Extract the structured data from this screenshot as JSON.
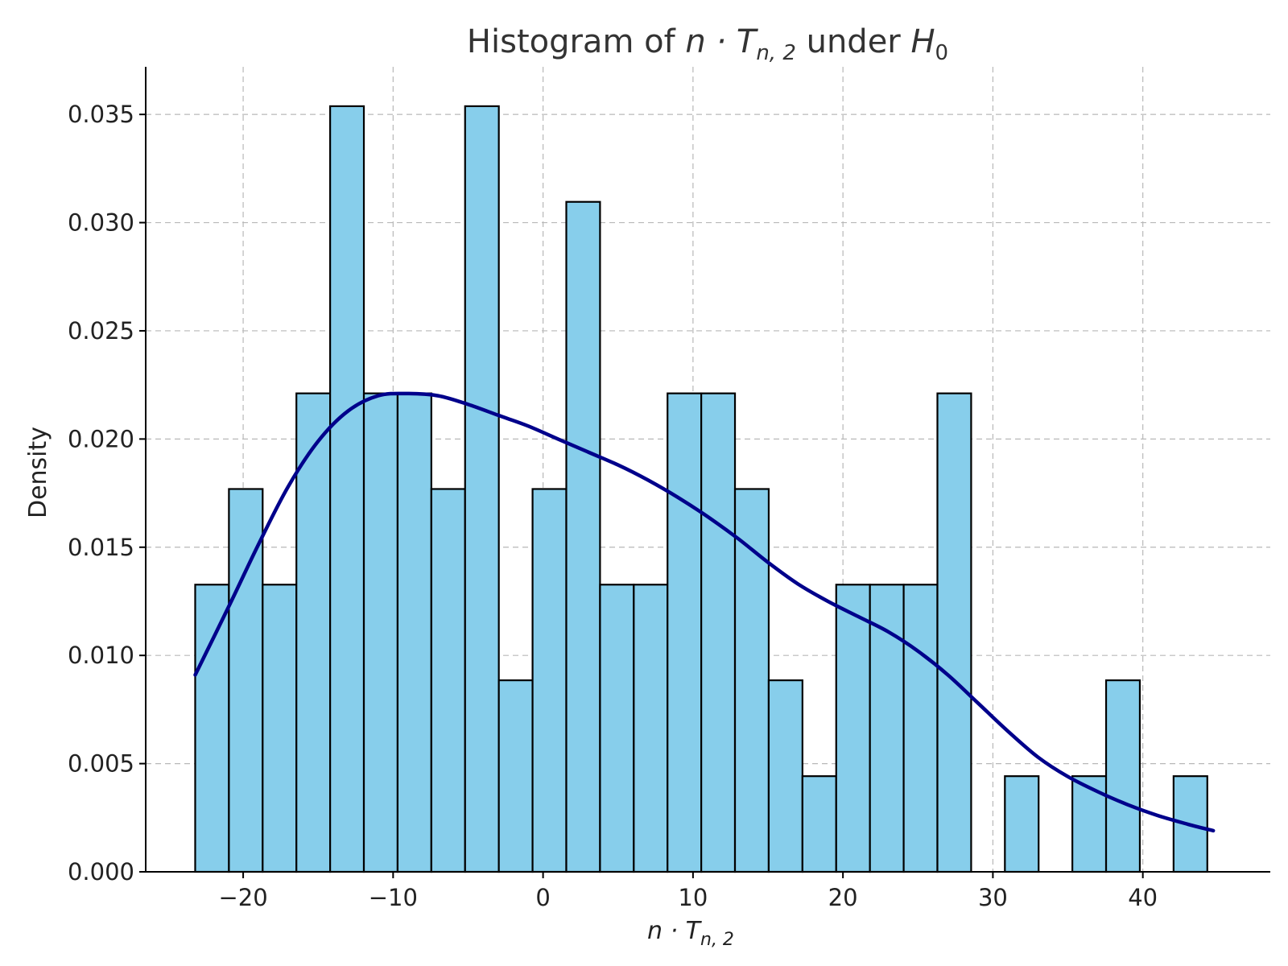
{
  "chart_data": {
    "type": "bar",
    "subtype": "histogram-with-density-curve",
    "title": {
      "prefix": "Histogram of ",
      "stat_var": "n · T",
      "stat_sub": "n, 2",
      "middle": " under ",
      "hyp_var": "H",
      "hyp_sub": "0"
    },
    "xlabel": {
      "var": "n · T",
      "sub": "n, 2"
    },
    "ylabel": "Density",
    "xlim": [
      -26.5,
      48.5
    ],
    "ylim": [
      0,
      0.0372
    ],
    "xticks": [
      -20,
      -10,
      0,
      10,
      20,
      30,
      40
    ],
    "xtick_labels": [
      "−20",
      "−10",
      "0",
      "10",
      "20",
      "30",
      "40"
    ],
    "yticks": [
      0,
      0.005,
      0.01,
      0.015,
      0.02,
      0.025,
      0.03,
      0.035
    ],
    "ytick_labels": [
      "0.000",
      "0.005",
      "0.010",
      "0.015",
      "0.020",
      "0.025",
      "0.030",
      "0.035"
    ],
    "grid": true,
    "bins": {
      "start": -23.2,
      "width": 2.25,
      "values": [
        0.01327,
        0.01769,
        0.01327,
        0.02211,
        0.03538,
        0.02211,
        0.02211,
        0.01769,
        0.03538,
        0.00885,
        0.01769,
        0.03096,
        0.01327,
        0.01327,
        0.02211,
        0.02211,
        0.01769,
        0.00885,
        0.00442,
        0.01327,
        0.01327,
        0.01327,
        0.02211,
        0,
        0.00442,
        0,
        0.00442,
        0.00885,
        0,
        0.00442
      ]
    },
    "density_curve": {
      "x": [
        -23.2,
        -21,
        -19,
        -17,
        -15,
        -13,
        -11,
        -9,
        -7,
        -5,
        -3,
        -1,
        1,
        3,
        5,
        7,
        9,
        11,
        13,
        15,
        17,
        19,
        21,
        23,
        25,
        27,
        29,
        31,
        33,
        35,
        37,
        39,
        41,
        43,
        44.7
      ],
      "y": [
        0.0091,
        0.0122,
        0.0151,
        0.0178,
        0.0199,
        0.0213,
        0.022,
        0.0221,
        0.022,
        0.0216,
        0.0211,
        0.0206,
        0.02,
        0.0194,
        0.0188,
        0.0181,
        0.0173,
        0.0164,
        0.0154,
        0.0143,
        0.0133,
        0.0125,
        0.0118,
        0.0111,
        0.0102,
        0.0091,
        0.0078,
        0.0065,
        0.0053,
        0.0044,
        0.0037,
        0.0031,
        0.0026,
        0.0022,
        0.0019
      ]
    },
    "colors": {
      "bar_fill": "#87ceeb",
      "bar_edge": "#000000",
      "curve": "#00008b"
    }
  }
}
